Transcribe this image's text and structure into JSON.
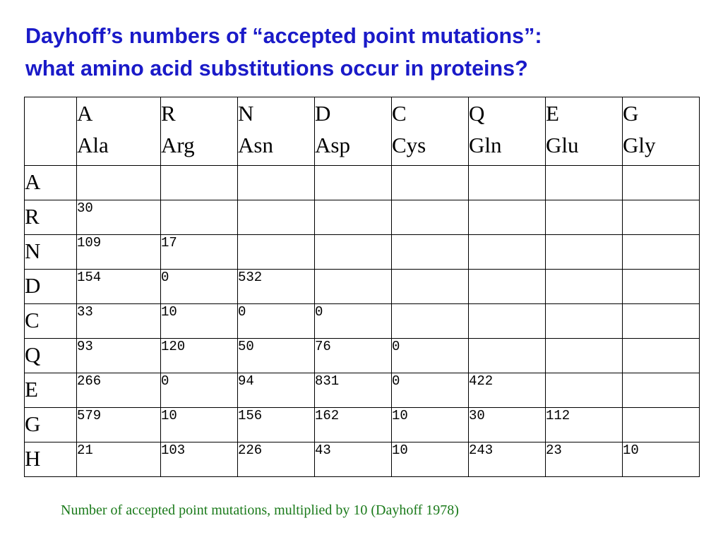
{
  "title": {
    "line1": "Dayhoff’s numbers of “accepted point mutations”:",
    "line2": "what amino acid substitutions occur in proteins?"
  },
  "table": {
    "columns": [
      {
        "code": "A",
        "name": "Ala"
      },
      {
        "code": "R",
        "name": "Arg"
      },
      {
        "code": "N",
        "name": "Asn"
      },
      {
        "code": "D",
        "name": "Asp"
      },
      {
        "code": "C",
        "name": "Cys"
      },
      {
        "code": "Q",
        "name": "Gln"
      },
      {
        "code": "E",
        "name": "Glu"
      },
      {
        "code": "G",
        "name": "Gly"
      }
    ],
    "rows": [
      {
        "label": "A",
        "values": [
          "",
          "",
          "",
          "",
          "",
          "",
          "",
          ""
        ]
      },
      {
        "label": "R",
        "values": [
          "30",
          "",
          "",
          "",
          "",
          "",
          "",
          ""
        ]
      },
      {
        "label": "N",
        "values": [
          "109",
          "17",
          "",
          "",
          "",
          "",
          "",
          ""
        ]
      },
      {
        "label": "D",
        "values": [
          "154",
          "0",
          "532",
          "",
          "",
          "",
          "",
          ""
        ]
      },
      {
        "label": "C",
        "values": [
          "33",
          "10",
          "0",
          "0",
          "",
          "",
          "",
          ""
        ]
      },
      {
        "label": "Q",
        "values": [
          "93",
          "120",
          "50",
          "76",
          "0",
          "",
          "",
          ""
        ]
      },
      {
        "label": "E",
        "values": [
          "266",
          "0",
          "94",
          "831",
          "0",
          "422",
          "",
          ""
        ]
      },
      {
        "label": "G",
        "values": [
          "579",
          "10",
          "156",
          "162",
          "10",
          "30",
          "112",
          ""
        ]
      },
      {
        "label": "H",
        "values": [
          "21",
          "103",
          "226",
          "43",
          "10",
          "243",
          "23",
          "10"
        ]
      }
    ]
  },
  "caption": "Number of accepted point mutations, multiplied by 10 (Dayhoff 1978)",
  "colors": {
    "title": "#1a1ac8",
    "caption": "#1a7a1a",
    "grid": "#000000"
  }
}
